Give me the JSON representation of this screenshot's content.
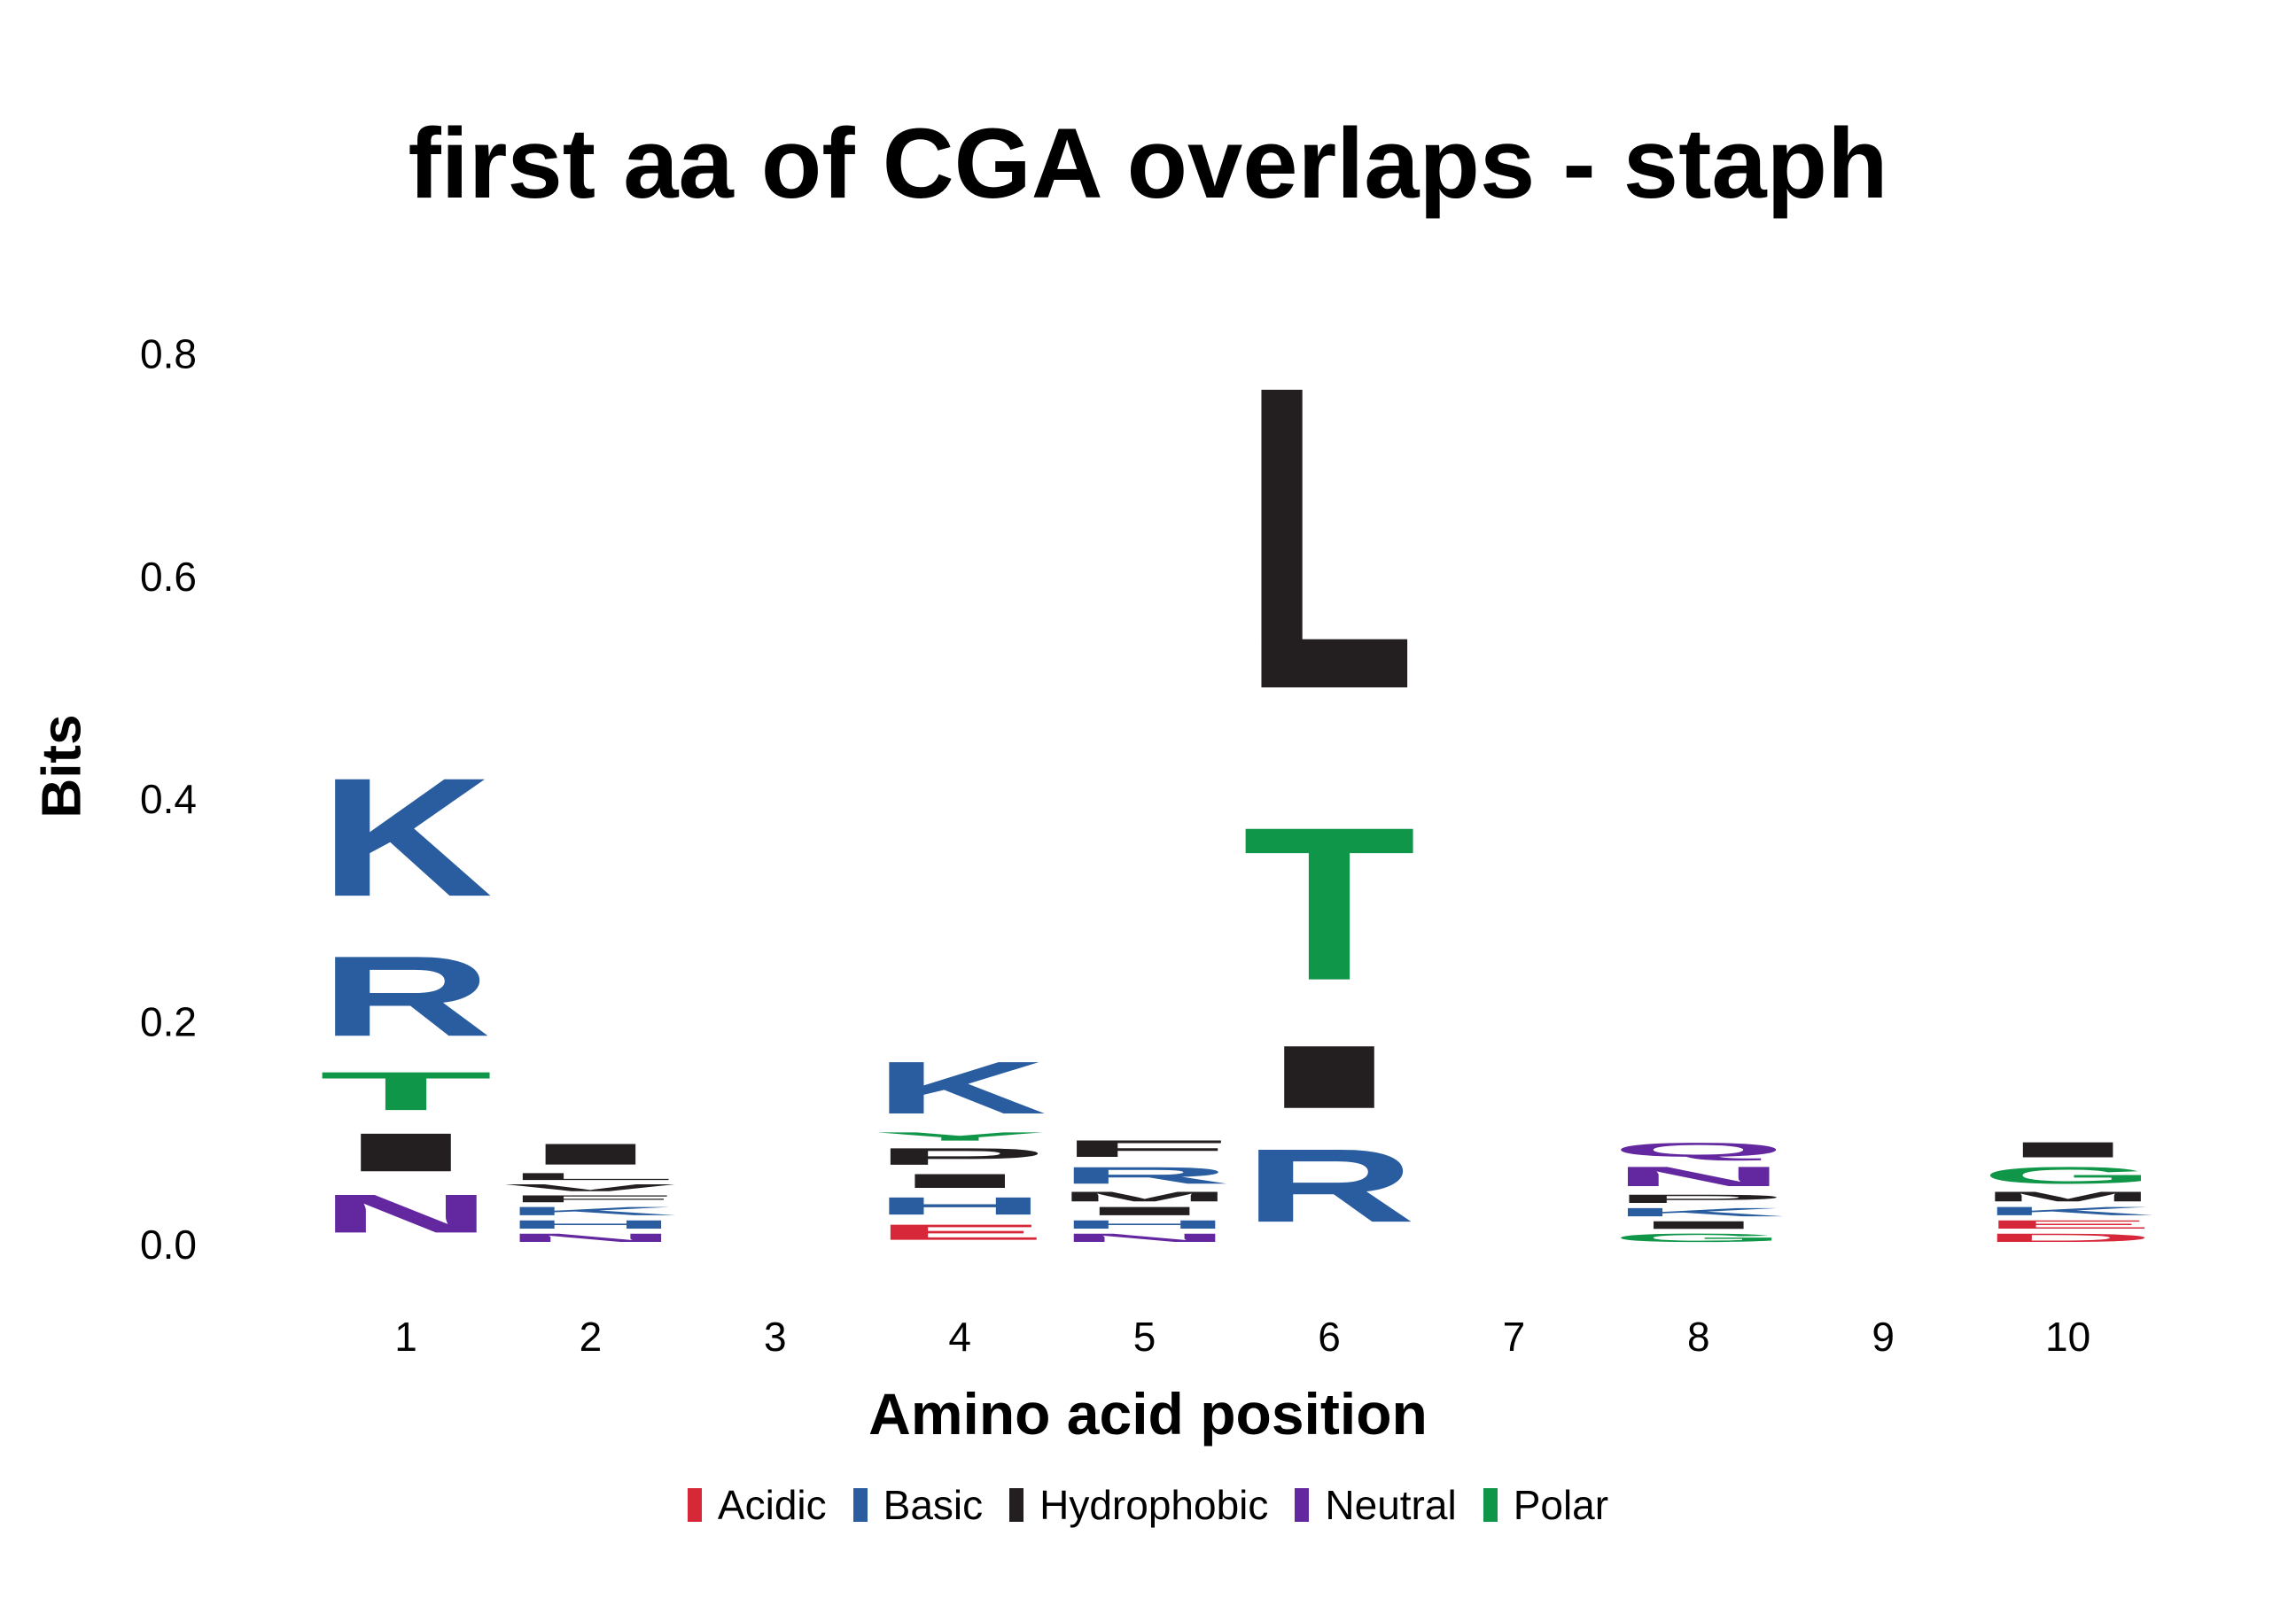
{
  "chart_data": {
    "type": "sequence-logo",
    "title": "first aa of CGA overlaps - staph",
    "xlabel": "Amino acid position",
    "ylabel": "Bits",
    "ylim": [
      0,
      0.86
    ],
    "y_ticks": [
      "0.0",
      "0.2",
      "0.4",
      "0.6",
      "0.8"
    ],
    "x_ticks": [
      "1",
      "2",
      "3",
      "4",
      "5",
      "6",
      "7",
      "8",
      "9",
      "10"
    ],
    "legend": [
      {
        "label": "Acidic",
        "color": "#d62839"
      },
      {
        "label": "Basic",
        "color": "#2a5d9f"
      },
      {
        "label": "Hydrophobic",
        "color": "#231f20"
      },
      {
        "label": "Neutral",
        "color": "#6327a0"
      },
      {
        "label": "Polar",
        "color": "#109648"
      }
    ],
    "positions": [
      {
        "position": "1",
        "letters": [
          {
            "aa": "N",
            "group": "Neutral",
            "bits": 0.055
          },
          {
            "aa": "I",
            "group": "Hydrophobic",
            "bits": 0.055
          },
          {
            "aa": "T",
            "group": "Polar",
            "bits": 0.055
          },
          {
            "aa": "R",
            "group": "Basic",
            "bits": 0.115
          },
          {
            "aa": "K",
            "group": "Basic",
            "bits": 0.17
          }
        ]
      },
      {
        "position": "2",
        "letters": [
          {
            "aa": "N",
            "group": "Neutral",
            "bits": 0.012
          },
          {
            "aa": "H",
            "group": "Basic",
            "bits": 0.012
          },
          {
            "aa": "K",
            "group": "Basic",
            "bits": 0.012
          },
          {
            "aa": "F",
            "group": "Hydrophobic",
            "bits": 0.01
          },
          {
            "aa": "V",
            "group": "Hydrophobic",
            "bits": 0.01
          },
          {
            "aa": "L",
            "group": "Hydrophobic",
            "bits": 0.01
          },
          {
            "aa": "I",
            "group": "Hydrophobic",
            "bits": 0.03
          }
        ]
      },
      {
        "position": "3",
        "letters": []
      },
      {
        "position": "4",
        "letters": [
          {
            "aa": "E",
            "group": "Acidic",
            "bits": 0.022
          },
          {
            "aa": "H",
            "group": "Basic",
            "bits": 0.025
          },
          {
            "aa": "I",
            "group": "Hydrophobic",
            "bits": 0.02
          },
          {
            "aa": "P",
            "group": "Hydrophobic",
            "bits": 0.024
          },
          {
            "aa": "Y",
            "group": "Polar",
            "bits": 0.012
          },
          {
            "aa": "K",
            "group": "Basic",
            "bits": 0.075
          }
        ]
      },
      {
        "position": "5",
        "letters": [
          {
            "aa": "N",
            "group": "Neutral",
            "bits": 0.012
          },
          {
            "aa": "H",
            "group": "Basic",
            "bits": 0.012
          },
          {
            "aa": "I",
            "group": "Hydrophobic",
            "bits": 0.012
          },
          {
            "aa": "M",
            "group": "Hydrophobic",
            "bits": 0.014
          },
          {
            "aa": "R",
            "group": "Basic",
            "bits": 0.024
          },
          {
            "aa": "F",
            "group": "Hydrophobic",
            "bits": 0.024
          }
        ]
      },
      {
        "position": "6",
        "letters": [
          {
            "aa": "R",
            "group": "Basic",
            "bits": 0.105
          },
          {
            "aa": "I",
            "group": "Hydrophobic",
            "bits": 0.09
          },
          {
            "aa": "T",
            "group": "Polar",
            "bits": 0.22
          },
          {
            "aa": "L",
            "group": "Hydrophobic",
            "bits": 0.435
          }
        ]
      },
      {
        "position": "7",
        "letters": []
      },
      {
        "position": "8",
        "letters": [
          {
            "aa": "G",
            "group": "Polar",
            "bits": 0.012
          },
          {
            "aa": "I",
            "group": "Hydrophobic",
            "bits": 0.011
          },
          {
            "aa": "K",
            "group": "Basic",
            "bits": 0.012
          },
          {
            "aa": "P",
            "group": "Hydrophobic",
            "bits": 0.012
          },
          {
            "aa": "N",
            "group": "Neutral",
            "bits": 0.028
          },
          {
            "aa": "Q",
            "group": "Neutral",
            "bits": 0.02
          }
        ]
      },
      {
        "position": "9",
        "letters": []
      },
      {
        "position": "10",
        "letters": [
          {
            "aa": "D",
            "group": "Acidic",
            "bits": 0.012
          },
          {
            "aa": "E",
            "group": "Acidic",
            "bits": 0.012
          },
          {
            "aa": "K",
            "group": "Basic",
            "bits": 0.012
          },
          {
            "aa": "M",
            "group": "Hydrophobic",
            "bits": 0.014
          },
          {
            "aa": "G",
            "group": "Polar",
            "bits": 0.024
          },
          {
            "aa": "I",
            "group": "Hydrophobic",
            "bits": 0.022
          }
        ]
      }
    ]
  }
}
